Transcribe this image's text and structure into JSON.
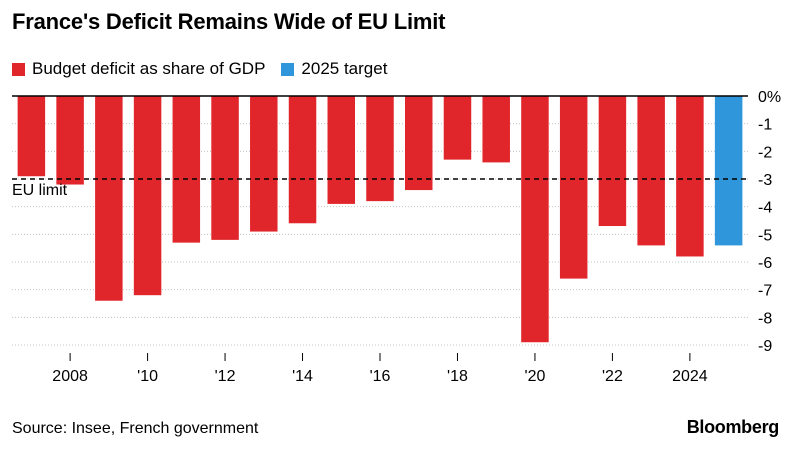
{
  "title": "France's Deficit Remains Wide of EU Limit",
  "legend": [
    {
      "label": "Budget deficit as share of GDP",
      "color": "#e1262b"
    },
    {
      "label": "2025 target",
      "color": "#2f96db"
    }
  ],
  "source": "Source: Insee, French government",
  "brand": "Bloomberg",
  "chart_data": {
    "type": "bar",
    "years": [
      2007,
      2008,
      2009,
      2010,
      2011,
      2012,
      2013,
      2014,
      2015,
      2016,
      2017,
      2018,
      2019,
      2020,
      2021,
      2022,
      2023,
      2024,
      2025
    ],
    "series": [
      {
        "name": "Budget deficit as share of GDP",
        "color": "#e1262b",
        "values": [
          -2.9,
          -3.2,
          -7.4,
          -7.2,
          -5.3,
          -5.2,
          -4.9,
          -4.6,
          -3.9,
          -3.8,
          -3.4,
          -2.3,
          -2.4,
          -8.9,
          -6.6,
          -4.7,
          -5.4,
          -5.8,
          null
        ]
      },
      {
        "name": "2025 target",
        "color": "#2f96db",
        "values": [
          null,
          null,
          null,
          null,
          null,
          null,
          null,
          null,
          null,
          null,
          null,
          null,
          null,
          null,
          null,
          null,
          null,
          null,
          -5.4
        ]
      }
    ],
    "x_tick_labels": [
      {
        "year": 2008,
        "label": "2008"
      },
      {
        "year": 2010,
        "label": "'10"
      },
      {
        "year": 2012,
        "label": "'12"
      },
      {
        "year": 2014,
        "label": "'14"
      },
      {
        "year": 2016,
        "label": "'16"
      },
      {
        "year": 2018,
        "label": "'18"
      },
      {
        "year": 2020,
        "label": "'20"
      },
      {
        "year": 2022,
        "label": "'22"
      },
      {
        "year": 2024,
        "label": "2024"
      }
    ],
    "y_ticks": [
      0,
      -1,
      -2,
      -3,
      -4,
      -5,
      -6,
      -7,
      -8,
      -9
    ],
    "y_tick_labels": [
      "0%",
      "-1",
      "-2",
      "-3",
      "-4",
      "-5",
      "-6",
      "-7",
      "-8",
      "-9"
    ],
    "ylim": [
      -9,
      0
    ],
    "reference_line": {
      "value": -3,
      "label": "EU limit"
    },
    "grid": true
  }
}
